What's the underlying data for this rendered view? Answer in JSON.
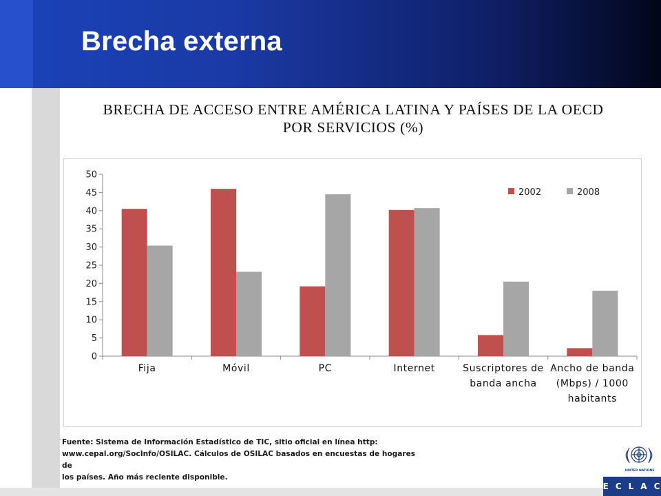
{
  "slide": {
    "title": "Brecha externa",
    "source_lines": [
      "Fuente: Sistema de Información Estadístico de TIC, sitio oficial en línea http:",
      "www.cepal.org/SocInfo/OSILAC. Cálculos de OSILAC basados en encuestas de hogares de",
      "los países. Año más reciente disponible."
    ],
    "logo_caption": "UNITED NATIONS",
    "brand": "ECLAC"
  },
  "chart_data": {
    "type": "bar",
    "title_lines": [
      "BRECHA DE ACCESO ENTRE AMÉRICA LATINA Y PAÍSES DE LA OECD",
      "POR SERVICIOS (%)"
    ],
    "categories": [
      [
        "Fija"
      ],
      [
        "Móvil"
      ],
      [
        "PC"
      ],
      [
        "Internet"
      ],
      [
        "Suscriptores de",
        "banda ancha"
      ],
      [
        "Ancho de banda",
        "(Mbps) / 1000",
        "habitants"
      ]
    ],
    "series": [
      {
        "name": "2002",
        "color": "#c0504d",
        "values": [
          40.5,
          46.0,
          19.2,
          40.2,
          5.8,
          2.2
        ]
      },
      {
        "name": "2008",
        "color": "#a6a6a6",
        "values": [
          30.4,
          23.2,
          44.5,
          40.7,
          20.5,
          18.0
        ]
      }
    ],
    "ylim": [
      0,
      50
    ],
    "yticks": [
      0,
      5,
      10,
      15,
      20,
      25,
      30,
      35,
      40,
      45,
      50
    ],
    "grid": false,
    "legend_position": "top-right"
  }
}
